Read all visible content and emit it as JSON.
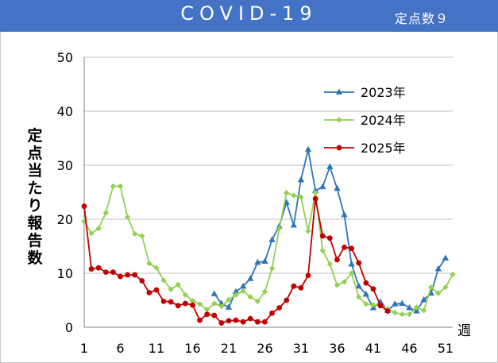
{
  "header": {
    "title": "COVID-19",
    "subtitle": "定点数９"
  },
  "chart_data": {
    "type": "line",
    "ylabel": "定点当たり報告数",
    "xlabel": "週",
    "ylim": [
      0,
      50
    ],
    "xlim": [
      1,
      52
    ],
    "yticks": [
      "0",
      "10",
      "20",
      "30",
      "40",
      "50"
    ],
    "xticks": [
      "1",
      "6",
      "11",
      "16",
      "21",
      "26",
      "31",
      "36",
      "41",
      "46",
      "51"
    ],
    "grid": "horizontal",
    "legend": "top-right",
    "series": [
      {
        "name": "2023年",
        "color": "#2e75b6",
        "marker": "triangle",
        "x": [
          19,
          20,
          21,
          22,
          23,
          24,
          25,
          26,
          27,
          28,
          29,
          30,
          31,
          32,
          33,
          34,
          35,
          36,
          37,
          38,
          39,
          40,
          41,
          42,
          43,
          44,
          45,
          46,
          47,
          48,
          49,
          50,
          51,
          52
        ],
        "values": [
          6.2,
          4.4,
          3.7,
          6.6,
          7.6,
          9.0,
          12.0,
          12.2,
          16.2,
          18.7,
          23.1,
          18.9,
          27.3,
          32.9,
          25.3,
          26.0,
          29.7,
          25.7,
          20.8,
          11.7,
          7.6,
          6.1,
          3.6,
          4.7,
          3.1,
          4.3,
          4.4,
          3.6,
          3.0,
          5.1,
          6.3,
          10.8,
          12.8,
          null
        ]
      },
      {
        "name": "2024年",
        "color": "#92d050",
        "marker": "diamond",
        "x": [
          1,
          2,
          3,
          4,
          5,
          6,
          7,
          8,
          9,
          10,
          11,
          12,
          13,
          14,
          15,
          16,
          17,
          18,
          19,
          20,
          21,
          22,
          23,
          24,
          25,
          26,
          27,
          28,
          29,
          30,
          31,
          32,
          33,
          34,
          35,
          36,
          37,
          38,
          39,
          40,
          41,
          42,
          43,
          44,
          45,
          46,
          47,
          48,
          49,
          50,
          51,
          52
        ],
        "values": [
          19.6,
          17.4,
          18.3,
          21.2,
          26.1,
          26.1,
          20.4,
          17.3,
          16.9,
          11.8,
          11.0,
          8.7,
          7.0,
          7.9,
          6.0,
          4.9,
          4.3,
          3.3,
          4.4,
          3.9,
          5.1,
          6.0,
          6.7,
          5.6,
          4.8,
          6.6,
          10.9,
          18.3,
          24.9,
          24.4,
          24.1,
          17.8,
          24.9,
          14.2,
          11.7,
          7.8,
          8.4,
          10.0,
          5.6,
          4.3,
          4.1,
          4.0,
          3.4,
          2.7,
          2.4,
          2.4,
          3.7,
          3.1,
          7.4,
          6.3,
          7.4,
          9.8
        ]
      },
      {
        "name": "2025年",
        "color": "#c00000",
        "marker": "circle",
        "x": [
          1,
          2,
          3,
          4,
          5,
          6,
          7,
          8,
          9,
          10,
          11,
          12,
          13,
          14,
          15,
          16,
          17,
          18,
          19,
          20,
          21,
          22,
          23,
          24,
          25,
          26,
          27,
          28,
          29,
          30,
          31,
          32,
          33,
          34,
          35,
          36,
          37,
          38,
          39,
          40,
          41,
          42,
          43
        ],
        "values": [
          22.4,
          10.8,
          11.0,
          10.2,
          10.2,
          9.4,
          9.7,
          9.7,
          8.6,
          6.4,
          6.9,
          4.8,
          4.7,
          4.0,
          4.4,
          4.1,
          1.3,
          2.4,
          2.2,
          0.8,
          1.2,
          1.3,
          1.0,
          1.6,
          1.0,
          1.0,
          2.6,
          3.6,
          5.0,
          7.6,
          7.3,
          9.6,
          23.8,
          16.9,
          16.5,
          12.5,
          14.8,
          14.6,
          11.9,
          8.2,
          7.1,
          4.0,
          3.0
        ]
      }
    ]
  }
}
